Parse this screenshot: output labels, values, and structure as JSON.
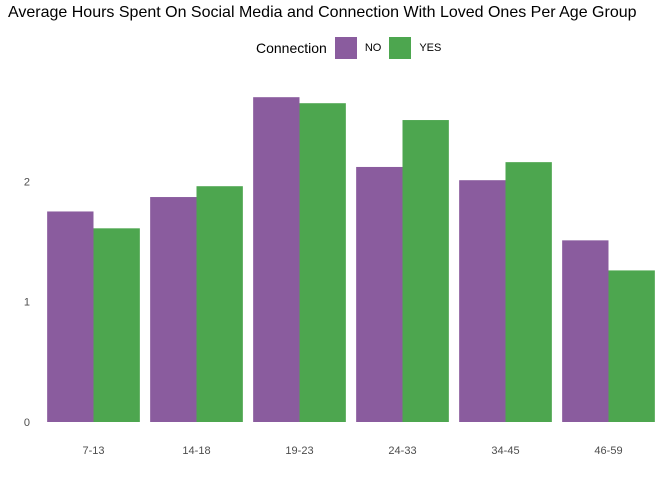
{
  "chart_data": {
    "type": "bar",
    "title": "Average Hours Spent On Social Media and Connection With Loved Ones Per Age Group",
    "xlabel": "",
    "ylabel": "",
    "categories": [
      "7-13",
      "14-18",
      "19-23",
      "24-33",
      "34-45",
      "46-59"
    ],
    "series": [
      {
        "name": "NO",
        "color": "#8A5C9E",
        "values": [
          1.75,
          1.87,
          2.7,
          2.12,
          2.01,
          1.51
        ]
      },
      {
        "name": "YES",
        "color": "#4DA64F",
        "values": [
          1.61,
          1.96,
          2.65,
          2.51,
          2.16,
          1.26
        ]
      }
    ],
    "yticks": [
      0,
      1,
      2
    ],
    "ylim": [
      0,
      2.8
    ],
    "legend": {
      "title": "Connection",
      "position": "top"
    },
    "grid": false
  }
}
